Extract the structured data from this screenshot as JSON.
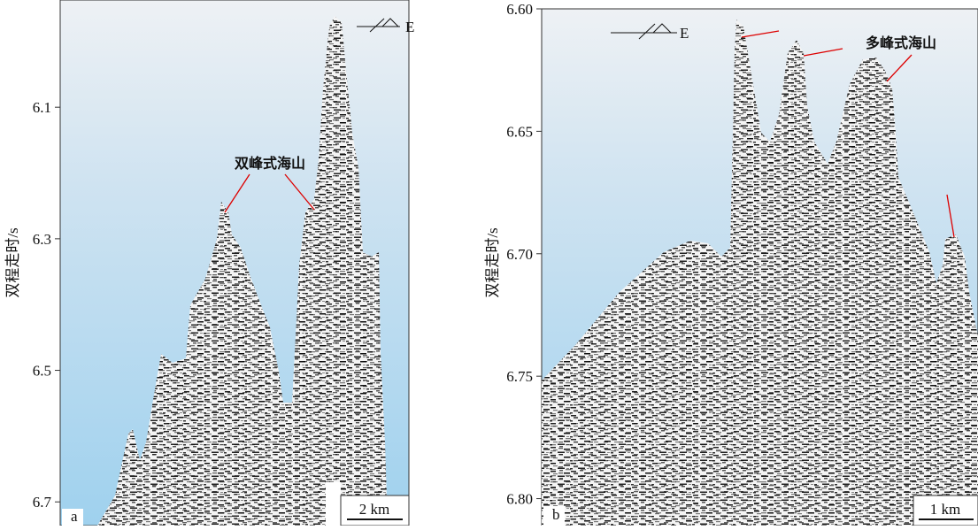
{
  "panels": [
    {
      "label": "a",
      "ylabel": "双程走时/s",
      "ylim": [
        5.937,
        6.736
      ],
      "yticks": [
        6.1,
        6.3,
        6.5,
        6.7
      ],
      "direction": "E",
      "annotation": "双峰式海山",
      "scale_bar": "2 km"
    },
    {
      "label": "b",
      "ylabel": "双程走时/s",
      "ylim": [
        6.6,
        6.811
      ],
      "yticks": [
        {
          "value": 6.6,
          "label": "6.60"
        },
        {
          "value": 6.65,
          "label": "6.65"
        },
        {
          "value": 6.7,
          "label": "6.70"
        },
        {
          "value": 6.75,
          "label": "6.75"
        },
        {
          "value": 6.8,
          "label": "6.80"
        }
      ],
      "direction": "E",
      "annotation": "多峰式海山",
      "scale_bar": "1 km"
    }
  ]
}
